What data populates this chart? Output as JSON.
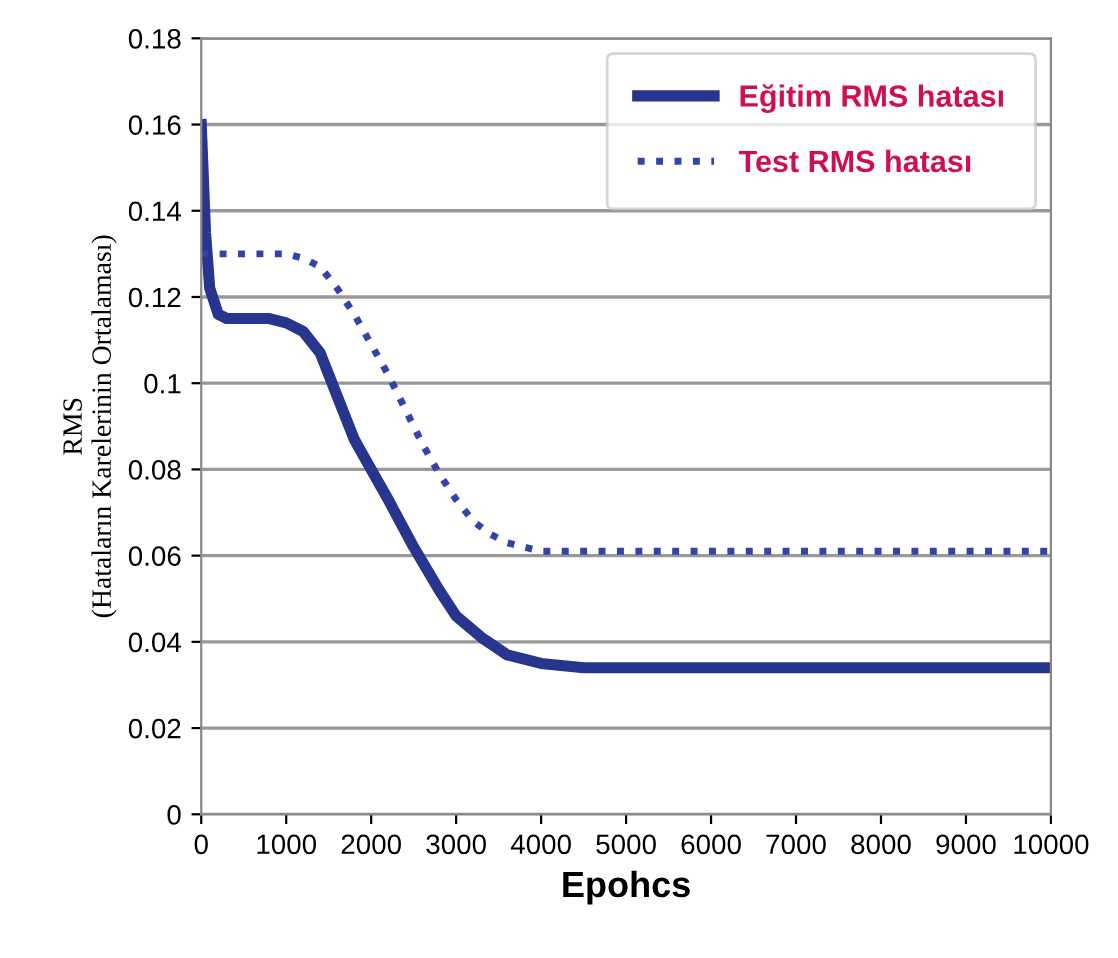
{
  "chart_data": {
    "type": "line",
    "xlabel": "Epohcs",
    "ylabel": "RMS\n(Hataların Karelerinin Ortalaması)",
    "xlim": [
      0,
      10000
    ],
    "xticks": [
      0,
      1000,
      2000,
      3000,
      4000,
      5000,
      6000,
      7000,
      8000,
      9000,
      10000
    ],
    "ylim": [
      0,
      0.18
    ],
    "yticks": [
      0,
      0.02,
      0.04,
      0.06,
      0.08,
      0.1,
      0.12,
      0.14,
      0.16,
      0.18
    ],
    "grid": "y",
    "legend": "top right",
    "series": [
      {
        "name": "Eğitim RMS hatası",
        "color": "#27358f",
        "line_style": "solid",
        "x": [
          0,
          50,
          100,
          200,
          300,
          500,
          800,
          1000,
          1200,
          1400,
          1600,
          1800,
          2000,
          2200,
          2500,
          2800,
          3000,
          3300,
          3600,
          4000,
          4500,
          5000,
          6000,
          7000,
          8000,
          9000,
          10000
        ],
        "values": [
          0.16,
          0.135,
          0.122,
          0.116,
          0.115,
          0.115,
          0.115,
          0.114,
          0.112,
          0.107,
          0.097,
          0.087,
          0.08,
          0.073,
          0.062,
          0.052,
          0.046,
          0.041,
          0.037,
          0.035,
          0.034,
          0.034,
          0.034,
          0.034,
          0.034,
          0.034,
          0.034
        ]
      },
      {
        "name": "Test RMS hatası",
        "color": "#3344a8",
        "line_style": "dotted",
        "x": [
          0,
          200,
          500,
          800,
          1000,
          1200,
          1400,
          1600,
          1800,
          2000,
          2200,
          2400,
          2600,
          2800,
          3000,
          3200,
          3400,
          3600,
          3800,
          4000,
          4500,
          5000,
          6000,
          7000,
          8000,
          9000,
          10000
        ],
        "values": [
          0.13,
          0.13,
          0.13,
          0.13,
          0.13,
          0.129,
          0.127,
          0.122,
          0.116,
          0.109,
          0.102,
          0.094,
          0.086,
          0.079,
          0.073,
          0.068,
          0.065,
          0.063,
          0.062,
          0.061,
          0.061,
          0.061,
          0.061,
          0.061,
          0.061,
          0.061,
          0.061
        ]
      }
    ]
  }
}
